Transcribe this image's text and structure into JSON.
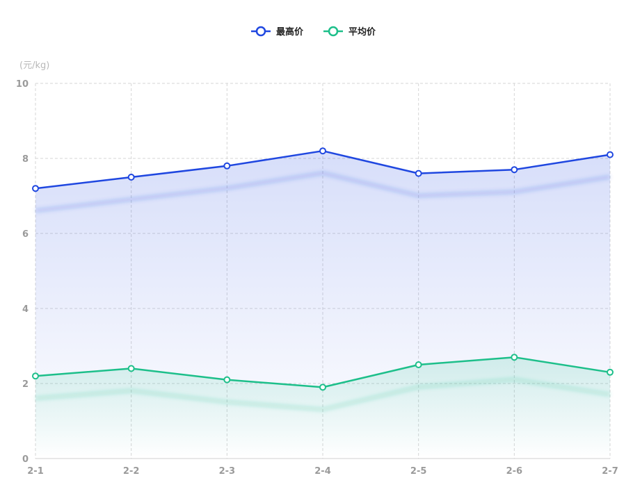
{
  "chart_data": {
    "type": "line",
    "categories": [
      "2-1",
      "2-2",
      "2-3",
      "2-4",
      "2-5",
      "2-6",
      "2-7"
    ],
    "series": [
      {
        "name": "最高价",
        "values": [
          7.2,
          7.5,
          7.8,
          8.2,
          7.6,
          7.7,
          8.1
        ],
        "color": "#1f47e0"
      },
      {
        "name": "平均价",
        "values": [
          2.2,
          2.4,
          2.1,
          1.9,
          2.5,
          2.7,
          2.3
        ],
        "color": "#1dbf8a"
      }
    ],
    "ylabel": "(元/kg)",
    "ylim": [
      0,
      10
    ],
    "yticks": [
      "0",
      "2",
      "4",
      "6",
      "8",
      "10"
    ],
    "grid": true,
    "area_fill": true,
    "legend_position": "top-center"
  }
}
